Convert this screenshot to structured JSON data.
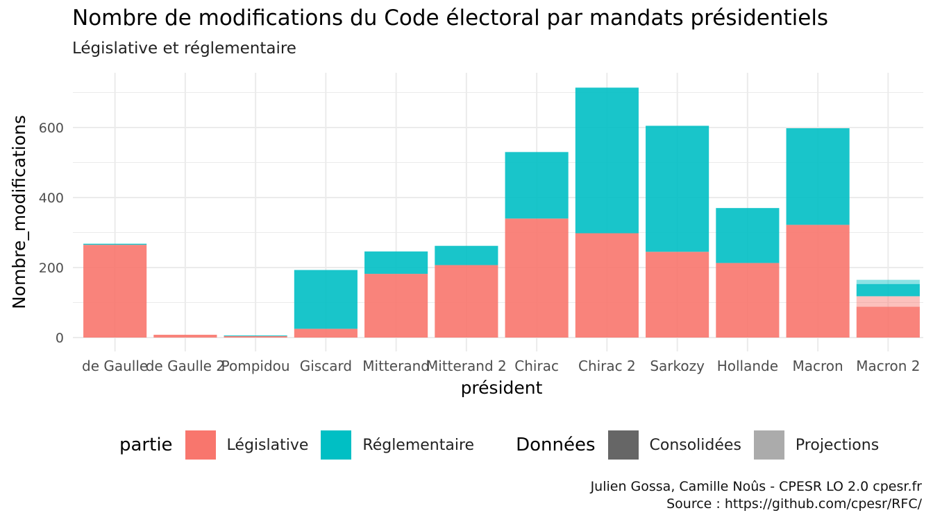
{
  "title": "Nombre de modifications du Code électoral par mandats présidentiels",
  "subtitle": "Législative et réglementaire",
  "caption_line1": "Julien Gossa, Camille Noûs - CPESR LO 2.0 cpesr.fr",
  "caption_line2": "Source : https://github.com/cpesr/RFC/",
  "colors": {
    "legislative": "#F8766D",
    "reglementaire": "#00BFC4",
    "consolidees": "#666666",
    "projections": "#ABABAB",
    "grid": "#EBEBEB"
  },
  "legend": {
    "partie_title": "partie",
    "partie_items": [
      "Législative",
      "Réglementaire"
    ],
    "donnees_title": "Données",
    "donnees_items": [
      "Consolidées",
      "Projections"
    ]
  },
  "chart_data": {
    "type": "bar",
    "stacked": true,
    "xlabel": "président",
    "ylabel": "Nombre_modifications",
    "ylim": [
      0,
      720
    ],
    "yticks": [
      0,
      200,
      400,
      600
    ],
    "grid": true,
    "legend_position": "bottom",
    "categories": [
      "de Gaulle",
      "de Gaulle 2",
      "Pompidou",
      "Giscard",
      "Mitterand",
      "Mitterand 2",
      "Chirac",
      "Chirac 2",
      "Sarkozy",
      "Hollande",
      "Macron",
      "Macron 2"
    ],
    "series": [
      {
        "name": "Législative",
        "data_type": "Consolidées",
        "values": [
          265,
          8,
          4,
          25,
          182,
          207,
          340,
          298,
          245,
          213,
          322,
          88
        ]
      },
      {
        "name": "Réglementaire",
        "data_type": "Consolidées",
        "values": [
          3,
          0,
          2,
          168,
          64,
          55,
          190,
          416,
          360,
          157,
          276,
          0
        ]
      },
      {
        "name": "Législative",
        "data_type": "Projections",
        "values": [
          0,
          0,
          0,
          0,
          0,
          0,
          0,
          0,
          0,
          0,
          0,
          30
        ]
      },
      {
        "name": "Réglementaire",
        "data_type": "Consolidées",
        "values": [
          0,
          0,
          0,
          0,
          0,
          0,
          0,
          0,
          0,
          0,
          0,
          35
        ]
      },
      {
        "name": "Réglementaire",
        "data_type": "Projections",
        "values": [
          0,
          0,
          0,
          0,
          0,
          0,
          0,
          0,
          0,
          0,
          0,
          12
        ]
      }
    ]
  }
}
